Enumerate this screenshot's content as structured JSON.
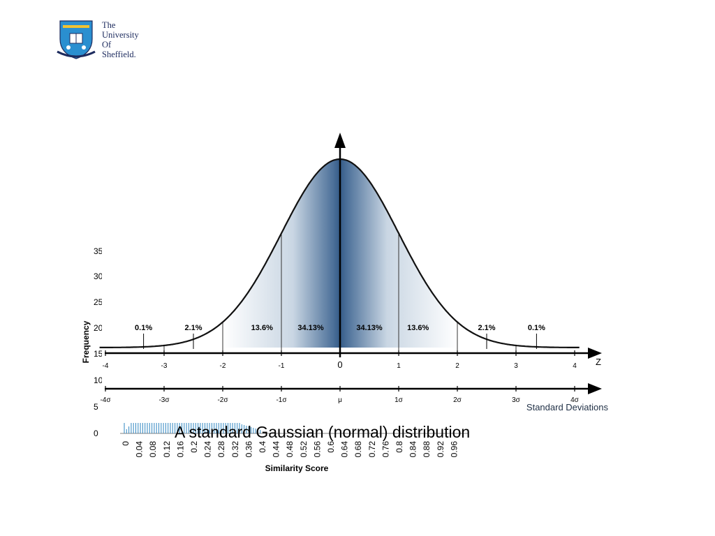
{
  "logo": {
    "lines": [
      "The",
      "University",
      "Of",
      "Sheffield."
    ]
  },
  "background_histogram": {
    "ylabel": "Frequency",
    "xlabel": "Similarity Score",
    "y_tick_labels": [
      "35",
      "30",
      "25",
      "20",
      "15",
      "10",
      "5",
      "0"
    ],
    "x_tick_labels": [
      "0",
      "0.04",
      "0.08",
      "0.12",
      "0.16",
      "0.2",
      "0.24",
      "0.28",
      "0.32",
      "0.36",
      "0.4",
      "0.44",
      "0.48",
      "0.52",
      "0.56",
      "0.6",
      "0.64",
      "0.68",
      "0.72",
      "0.76",
      "0.8",
      "0.84",
      "0.88",
      "0.92",
      "0.96"
    ]
  },
  "chart_data": {
    "type": "area",
    "title": "A standard Gaussian (normal) distribution",
    "z_axis": {
      "label": "Z",
      "ticks": [
        "-4",
        "-3",
        "-2",
        "-1",
        "0",
        "1",
        "2",
        "3",
        "4"
      ],
      "values": [
        -4,
        -3,
        -2,
        -1,
        0,
        1,
        2,
        3,
        4
      ]
    },
    "sd_axis": {
      "label": "Standard Deviations",
      "ticks": [
        "-4σ",
        "-3σ",
        "-2σ",
        "-1σ",
        "μ",
        "1σ",
        "2σ",
        "3σ",
        "4σ"
      ]
    },
    "xlim": [
      -4,
      4
    ],
    "regions": [
      {
        "label": "0.1%",
        "from": -4,
        "to": -3
      },
      {
        "label": "2.1%",
        "from": -3,
        "to": -2
      },
      {
        "label": "13.6%",
        "from": -2,
        "to": -1
      },
      {
        "label": "34.13%",
        "from": -1,
        "to": 0
      },
      {
        "label": "34.13%",
        "from": 0,
        "to": 1
      },
      {
        "label": "13.6%",
        "from": 1,
        "to": 2
      },
      {
        "label": "2.1%",
        "from": 2,
        "to": 3
      },
      {
        "label": "0.1%",
        "from": 3,
        "to": 4
      }
    ],
    "colors": {
      "fill_center": "#3e6591",
      "fill_edge": "#ffffff",
      "curve": "#111111"
    }
  }
}
